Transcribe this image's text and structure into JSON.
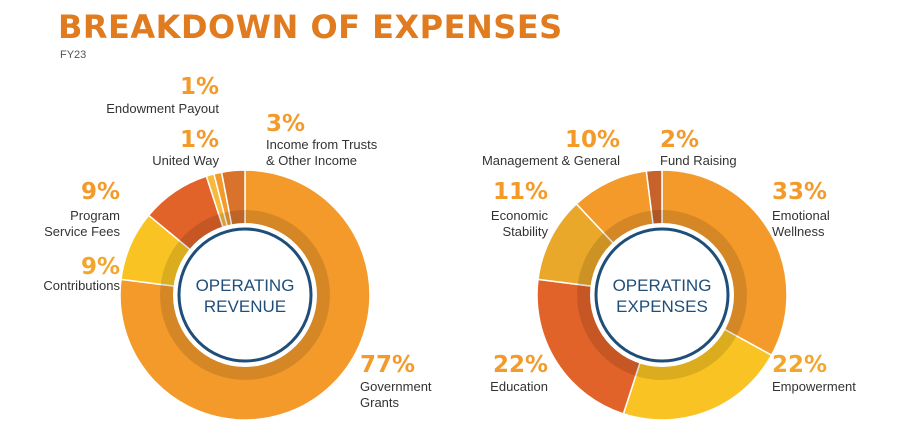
{
  "page": {
    "title": "BREAKDOWN OF EXPENSES",
    "subtitle": "FY23"
  },
  "colors": {
    "accent": "#E07B1F",
    "label_text": "#333333",
    "center_border": "#1F4E79",
    "center_text": "#1F4E79"
  },
  "chart_data": [
    {
      "type": "pie",
      "variant": "donut",
      "title": "",
      "center_label": [
        "OPERATING",
        "REVENUE"
      ],
      "slices": [
        {
          "label": [
            "Government",
            "Grants"
          ],
          "value": 77,
          "value_label": "77%",
          "color": "#F39A2B"
        },
        {
          "label": [
            "Contributions"
          ],
          "value": 9,
          "value_label": "9%",
          "color": "#F9C423"
        },
        {
          "label": [
            "Program",
            "Service Fees"
          ],
          "value": 9,
          "value_label": "9%",
          "color": "#E2632A"
        },
        {
          "label": [
            "United Way"
          ],
          "value": 1,
          "value_label": "1%",
          "color": "#F6B93B"
        },
        {
          "label": [
            "Endowment Payout"
          ],
          "value": 1,
          "value_label": "1%",
          "color": "#F39A2B"
        },
        {
          "label": [
            "Income from Trusts",
            "& Other Income"
          ],
          "value": 3,
          "value_label": "3%",
          "color": "#D9722B"
        }
      ]
    },
    {
      "type": "pie",
      "variant": "donut",
      "title": "",
      "center_label": [
        "OPERATING",
        "EXPENSES"
      ],
      "slices": [
        {
          "label": [
            "Emotional",
            "Wellness"
          ],
          "value": 33,
          "value_label": "33%",
          "color": "#F39A2B"
        },
        {
          "label": [
            "Empowerment"
          ],
          "value": 22,
          "value_label": "22%",
          "color": "#F9C423"
        },
        {
          "label": [
            "Education"
          ],
          "value": 22,
          "value_label": "22%",
          "color": "#E2632A"
        },
        {
          "label": [
            "Economic",
            "Stability"
          ],
          "value": 11,
          "value_label": "11%",
          "color": "#E9A82A"
        },
        {
          "label": [
            "Management & General"
          ],
          "value": 10,
          "value_label": "10%",
          "color": "#F39A2B"
        },
        {
          "label": [
            "Fund Raising"
          ],
          "value": 2,
          "value_label": "2%",
          "color": "#C7622A"
        }
      ]
    }
  ]
}
